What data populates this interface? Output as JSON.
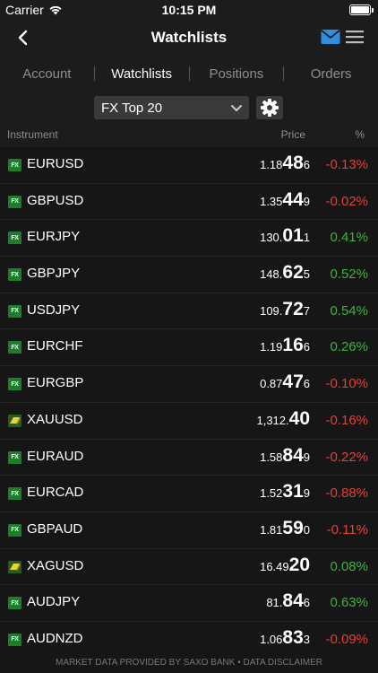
{
  "status": {
    "carrier": "Carrier",
    "time": "10:15 PM",
    "wifi_icon": "wifi-icon",
    "battery_icon": "battery-icon"
  },
  "nav": {
    "title": "Watchlists",
    "back_icon": "chevron-left-icon",
    "mail_icon": "mail-icon",
    "menu_icon": "hamburger-menu-icon"
  },
  "tabs": [
    {
      "label": "Account",
      "active": false
    },
    {
      "label": "Watchlists",
      "active": true
    },
    {
      "label": "Positions",
      "active": false
    },
    {
      "label": "Orders",
      "active": false
    }
  ],
  "toolbar": {
    "watchlist_value": "FX Top 20",
    "settings_icon": "gear-icon"
  },
  "columns": {
    "instrument": "Instrument",
    "price": "Price",
    "pct": "%"
  },
  "colors": {
    "negative": "#e0413a",
    "positive": "#3db33d",
    "fx_badge": "#1e7d2c"
  },
  "rows": [
    {
      "badge": "FX",
      "instrument": "EURUSD",
      "price": {
        "pre": "1.18",
        "big": "48",
        "post": "6"
      },
      "pct": "-0.13%",
      "dir": "neg"
    },
    {
      "badge": "FX",
      "instrument": "GBPUSD",
      "price": {
        "pre": "1.35",
        "big": "44",
        "post": "9"
      },
      "pct": "-0.02%",
      "dir": "neg"
    },
    {
      "badge": "FX",
      "instrument": "EURJPY",
      "price": {
        "pre": "130.",
        "big": "01",
        "post": "1"
      },
      "pct": "0.41%",
      "dir": "pos"
    },
    {
      "badge": "FX",
      "instrument": "GBPJPY",
      "price": {
        "pre": "148.",
        "big": "62",
        "post": "5"
      },
      "pct": "0.52%",
      "dir": "pos"
    },
    {
      "badge": "FX",
      "instrument": "USDJPY",
      "price": {
        "pre": "109.",
        "big": "72",
        "post": "7"
      },
      "pct": "0.54%",
      "dir": "pos"
    },
    {
      "badge": "FX",
      "instrument": "EURCHF",
      "price": {
        "pre": "1.19",
        "big": "16",
        "post": "6"
      },
      "pct": "0.26%",
      "dir": "pos"
    },
    {
      "badge": "FX",
      "instrument": "EURGBP",
      "price": {
        "pre": "0.87",
        "big": "47",
        "post": "6"
      },
      "pct": "-0.10%",
      "dir": "neg"
    },
    {
      "badge": "METAL",
      "instrument": "XAUUSD",
      "price": {
        "pre": "1,312.",
        "big": "40",
        "post": ""
      },
      "pct": "-0.16%",
      "dir": "neg"
    },
    {
      "badge": "FX",
      "instrument": "EURAUD",
      "price": {
        "pre": "1.58",
        "big": "84",
        "post": "9"
      },
      "pct": "-0.22%",
      "dir": "neg"
    },
    {
      "badge": "FX",
      "instrument": "EURCAD",
      "price": {
        "pre": "1.52",
        "big": "31",
        "post": "9"
      },
      "pct": "-0.88%",
      "dir": "neg"
    },
    {
      "badge": "FX",
      "instrument": "GBPAUD",
      "price": {
        "pre": "1.81",
        "big": "59",
        "post": "0"
      },
      "pct": "-0.11%",
      "dir": "neg"
    },
    {
      "badge": "METAL",
      "instrument": "XAGUSD",
      "price": {
        "pre": "16.49",
        "big": "20",
        "post": ""
      },
      "pct": "0.08%",
      "dir": "pos"
    },
    {
      "badge": "FX",
      "instrument": "AUDJPY",
      "price": {
        "pre": "81.",
        "big": "84",
        "post": "6"
      },
      "pct": "0.63%",
      "dir": "pos"
    },
    {
      "badge": "FX",
      "instrument": "AUDNZD",
      "price": {
        "pre": "1.06",
        "big": "83",
        "post": "3"
      },
      "pct": "-0.09%",
      "dir": "neg"
    }
  ],
  "footer": {
    "text": "MARKET DATA PROVIDED BY SAXO BANK • DATA DISCLAIMER"
  }
}
